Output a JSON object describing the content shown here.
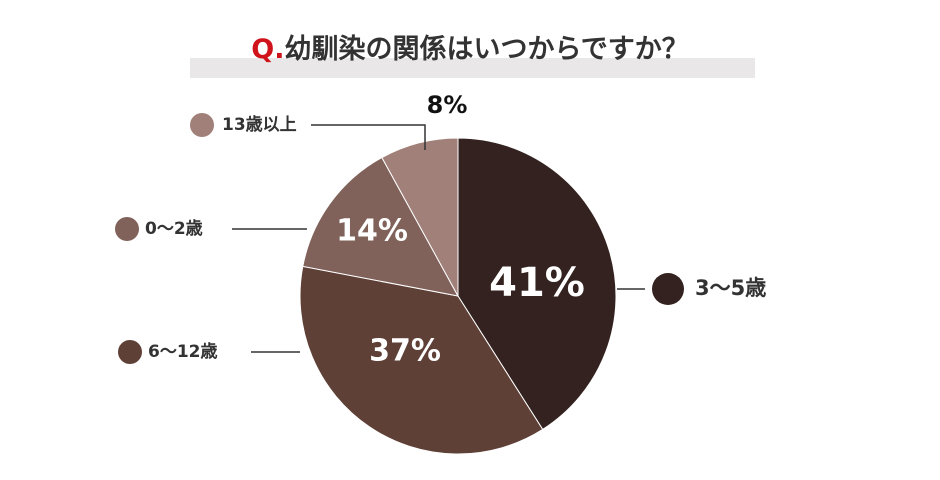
{
  "chart_data": {
    "type": "pie",
    "title_prefix": "Q.",
    "title": "幼馴染の関係はいつからですか？",
    "categories": [
      "3〜5歳",
      "6〜12歳",
      "0〜2歳",
      "13歳以上"
    ],
    "values": [
      41,
      37,
      14,
      8
    ],
    "value_labels": [
      "41%",
      "37%",
      "14%",
      "8%"
    ],
    "colors": [
      "#33221f",
      "#5e4037",
      "#80625a",
      "#a08078"
    ]
  }
}
